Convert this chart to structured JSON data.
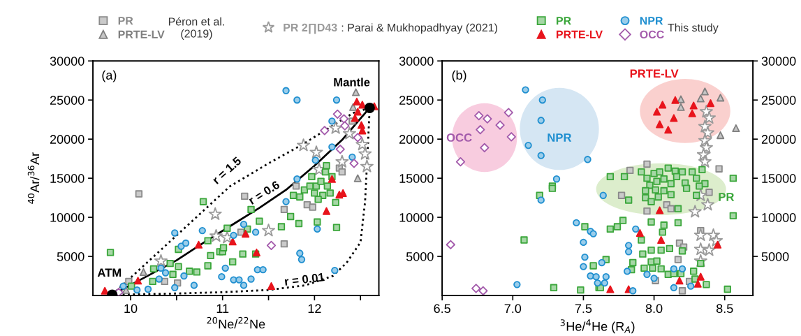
{
  "chart_data": [
    {
      "type": "scatter",
      "xlabel": "$^{20}$Ne/$^{22}$Ne",
      "ylabel": "$^{40}$Ar/$^{36}$Ar",
      "xlim": [
        9.59,
        12.7
      ],
      "xticks": [
        10,
        {
          "value": 10.5,
          "label": null
        },
        11,
        {
          "value": 11.5,
          "label": null
        },
        12,
        {
          "value": 12.5,
          "label": null
        }
      ],
      "ylim": [
        0,
        30000
      ],
      "yticks": [
        5000,
        10000,
        15000,
        20000,
        25000,
        30000
      ],
      "legend": "top",
      "series": [
        {
          "name": "PR",
          "color": "#8a8a8a",
          "marker": "square",
          "x": [
            10.09,
            9.98,
            10.37,
            10.51,
            11.24,
            11.8,
            11.67,
            11.2,
            11.67,
            11.92,
            11.98,
            12.27,
            12.3,
            12.41
          ],
          "values": [
            13000,
            1800,
            1800,
            1600,
            12700,
            14000,
            11000,
            8100,
            6600,
            11600,
            11300,
            16300,
            15800,
            22300
          ]
        },
        {
          "name": "PRTE-LV",
          "color": "#808080",
          "marker": "triangle",
          "x": [
            12.45,
            12.47,
            10.14,
            9.95,
            12.42
          ],
          "values": [
            26000,
            15000,
            3000,
            700,
            24100
          ]
        },
        {
          "name": "PR 2∏D43",
          "color": "#9a9a9a",
          "marker": "star",
          "x": [
            10.92,
            10.93,
            10.33,
            11.05,
            11.5,
            11.88,
            12.02,
            12.05,
            12.3,
            12.23,
            12.52,
            12.55,
            12.57,
            12.38
          ],
          "values": [
            10400,
            7600,
            4400,
            7400,
            8300,
            19200,
            18300,
            16100,
            17100,
            21400,
            19300,
            18100,
            16500,
            20700
          ]
        },
        {
          "name": "PR",
          "color": "#3aa63a",
          "marker": "square",
          "x": [
            9.78,
            10.79,
            10.52,
            10.52,
            10.43,
            10.25,
            10.24,
            10.46,
            10.64,
            10.72,
            10.84,
            10.87,
            10.97,
            11.0,
            11.05,
            10.84,
            10.01,
            11.31,
            11.4,
            11.27,
            11.64,
            11.74,
            11.83,
            11.77,
            11.84,
            11.89,
            12.03,
            12.24,
            12.23,
            11.22,
            11.11,
            11.01,
            11.36,
            11.97,
            12.02,
            12.07,
            12.12,
            12.14,
            12.17,
            12.09,
            12.19,
            12.0,
            12.04,
            12.13,
            11.95
          ],
          "values": [
            5500,
            12000,
            5900,
            3700,
            4100,
            3400,
            1800,
            2700,
            3100,
            3000,
            3800,
            5100,
            5600,
            5600,
            8600,
            7000,
            1200,
            11000,
            9500,
            8500,
            8800,
            10100,
            9200,
            12800,
            12600,
            13500,
            9400,
            8700,
            11900,
            5300,
            4300,
            6100,
            5300,
            15200,
            14000,
            14600,
            15800,
            14000,
            13100,
            12800,
            15200,
            13100,
            12300,
            16600,
            14000
          ]
        },
        {
          "name": "PRTE-LV",
          "color": "#e8141c",
          "marker": "triangle",
          "x": [
            9.72,
            10.08,
            10.74,
            11.11,
            11.25,
            11.37,
            11.53,
            12.13,
            12.19,
            12.27,
            12.31,
            12.46,
            12.52,
            12.47,
            12.44,
            12.51,
            12.52,
            12.65
          ],
          "values": [
            600,
            1900,
            6500,
            6900,
            7900,
            5500,
            1200,
            10800,
            14900,
            12900,
            13100,
            24800,
            24400,
            23500,
            22700,
            21800,
            21100,
            24200
          ]
        },
        {
          "name": "NPR",
          "color": "#1f8fd0",
          "marker": "circle",
          "x": [
            10.48,
            10.55,
            10.6,
            10.78,
            10.33,
            10.38,
            10.31,
            10.58,
            10.69,
            10.48,
            10.19,
            10.07,
            9.92,
            11.03,
            10.99,
            11.69,
            11.81,
            12.24,
            12.19,
            12.19,
            12.01,
            11.81,
            11.69,
            12.41,
            11.23,
            11.36,
            11.12,
            11.84,
            11.86,
            12.03,
            12.22,
            11.38,
            11.44,
            11.12,
            11.18,
            11.23,
            11.31
          ],
          "values": [
            8000,
            6300,
            6700,
            8300,
            3500,
            2900,
            2100,
            2500,
            1300,
            1000,
            800,
            700,
            1200,
            3500,
            2400,
            26200,
            25000,
            25000,
            22300,
            19000,
            17300,
            14900,
            12000,
            17700,
            9100,
            8100,
            7700,
            5400,
            4600,
            8500,
            3200,
            3300,
            3300,
            2000,
            2000,
            1300,
            2100
          ]
        },
        {
          "name": "OCC",
          "color": "#a35aab",
          "marker": "diamond",
          "x": [
            9.87,
            11.53,
            12.11,
            12.25,
            12.32,
            12.33,
            12.28,
            12.43,
            12.47
          ],
          "values": [
            400,
            6400,
            21100,
            23200,
            22600,
            21700,
            18700,
            16900,
            20200
          ]
        },
        {
          "type": "line",
          "color": "#000000",
          "line_style": "solid",
          "x": [
            9.8,
            10.2,
            10.5,
            10.8,
            11.1,
            11.4,
            11.7,
            12.0,
            12.3,
            12.6
          ],
          "values": [
            100,
            2600,
            4500,
            6800,
            9000,
            11200,
            13600,
            16600,
            19900,
            24000
          ]
        },
        {
          "color": "#000000",
          "marker": "circle",
          "x": [
            9.8,
            12.6
          ],
          "values": [
            100,
            24000
          ]
        }
      ],
      "annotations": [
        "(a)",
        "ATM",
        "Mantle",
        "r = 1.5",
        "r = 0.6",
        "r = 0.01",
        "Péron et al.\n(2019)",
        ": Parai & Mukhopadhyay (2021)",
        "This study"
      ]
    },
    {
      "type": "scatter",
      "xlabel": "$^{3}$He/$^{4}$He (R$_{A}$)",
      "xlim": [
        6.5,
        8.7
      ],
      "xticks": [
        6.5,
        {
          "value": 7.0,
          "label": "7.0"
        },
        7.5,
        {
          "value": 8.0,
          "label": "8.0"
        },
        8.5
      ],
      "ylim": [
        0,
        30000
      ],
      "yticks": [
        5000,
        10000,
        15000,
        20000,
        25000,
        30000
      ],
      "y2lim": [
        0,
        30000
      ],
      "y2ticks": [
        5000,
        10000,
        15000,
        20000,
        25000,
        30000
      ],
      "series": [
        {
          "color": "#8a8a8a",
          "marker": "square",
          "x": [
            7.95,
            7.83,
            8.46,
            7.77,
            7.95,
            8.09,
            8.12,
            8.39,
            8.33,
            8.18,
            8.21,
            8.17,
            8.01,
            8.25,
            8.2
          ],
          "values": [
            16800,
            16000,
            16200,
            12800,
            10800,
            11600,
            11100,
            13200,
            8300,
            6700,
            6200,
            4600,
            1900,
            1800,
            600
          ]
        },
        {
          "color": "#808080",
          "marker": "triangle",
          "x": [
            8.36,
            8.47,
            8.19,
            8.19,
            8.33,
            8.47,
            8.58
          ],
          "values": [
            26100,
            25300,
            25100,
            24100,
            25200,
            20500,
            21400
          ]
        },
        {
          "color": "#9a9a9a",
          "marker": "star",
          "x": [
            8.37,
            8.39,
            8.36,
            8.38,
            8.36,
            8.37,
            8.35,
            8.36,
            8.33,
            8.38,
            8.29,
            8.33,
            8.42,
            8.44,
            8.33,
            8.39,
            8.33
          ],
          "values": [
            23500,
            22700,
            21600,
            20800,
            19800,
            18900,
            18000,
            17100,
            12800,
            11600,
            10700,
            7700,
            7700,
            7000,
            5900,
            5800,
            4400
          ]
        },
        {
          "color": "#3aa63a",
          "marker": "square",
          "x": [
            7.69,
            7.79,
            7.82,
            7.91,
            7.95,
            8.0,
            8.04,
            8.1,
            8.15,
            8.2,
            8.27,
            8.34,
            7.97,
            8.02,
            8.07,
            8.12,
            8.16,
            8.22,
            8.3,
            8.36,
            7.94,
            8.01,
            8.07,
            8.12,
            8.23,
            8.32,
            7.94,
            7.98,
            8.03,
            8.3,
            8.17,
            8.56,
            8.56,
            7.78,
            7.98,
            8.07,
            8.17,
            8.06,
            7.91,
            7.74,
            7.69,
            7.92,
            7.98,
            8.05,
            8.11,
            8.2,
            7.66,
            7.85,
            7.98,
            8.02,
            7.99,
            7.93,
            8.05,
            7.84,
            8.1,
            8.14,
            8.19,
            8.28,
            8.33,
            8.29,
            8.37,
            8.52,
            7.61,
            7.28,
            7.28,
            7.19,
            7.08,
            7.51,
            7.57,
            7.29,
            7.48,
            7.62
          ],
          "values": [
            15200,
            15200,
            12200,
            15800,
            15000,
            15600,
            15800,
            16300,
            15900,
            15800,
            15800,
            16100,
            14100,
            14600,
            14900,
            14300,
            15200,
            14400,
            15000,
            14300,
            13400,
            13500,
            13400,
            12900,
            13700,
            14000,
            12500,
            12000,
            12600,
            12800,
            11100,
            15000,
            10200,
            9600,
            9400,
            9000,
            9300,
            8100,
            7100,
            8800,
            8500,
            5300,
            5800,
            5800,
            6000,
            5700,
            4600,
            4200,
            4300,
            4400,
            3500,
            3500,
            3400,
            3300,
            2700,
            2800,
            2800,
            3100,
            4100,
            2100,
            1400,
            800,
            1000,
            14000,
            13700,
            12800,
            7100,
            8800,
            3800,
            1000,
            700,
            1000
          ]
        },
        {
          "color": "#e8141c",
          "marker": "triangle",
          "x": [
            8.02,
            8.06,
            8.15,
            8.28,
            8.27,
            8.4,
            8.14,
            8.04,
            8.1,
            7.9,
            8.05,
            8.45,
            8.04,
            8.33,
            8.18,
            8.31,
            7.82,
            7.69
          ],
          "values": [
            23500,
            24400,
            25000,
            24300,
            23300,
            24600,
            22700,
            21900,
            21200,
            8000,
            7100,
            6500,
            10900,
            2400,
            1900,
            1500,
            800,
            800
          ]
        },
        {
          "color": "#1f8fd0",
          "marker": "circle",
          "x": [
            7.09,
            7.21,
            7.2,
            7.11,
            7.2,
            7.53,
            7.31,
            7.2,
            7.45,
            7.55,
            7.57,
            7.5,
            7.51,
            7.5,
            7.55,
            7.59,
            7.6,
            7.03,
            7.64,
            7.87,
            7.82,
            7.82,
            7.63,
            7.66,
            7.65,
            7.81,
            7.95,
            8.0,
            8.14,
            8.2,
            8.26,
            8.14,
            7.85
          ],
          "values": [
            26300,
            25000,
            22400,
            19200,
            17900,
            17400,
            14900,
            12200,
            9300,
            8200,
            7900,
            6800,
            4900,
            3700,
            2500,
            2400,
            1600,
            1400,
            12800,
            8500,
            6400,
            5600,
            4200,
            2400,
            1600,
            3100,
            2700,
            2200,
            3400,
            3400,
            1200,
            1000,
            600
          ]
        },
        {
          "color": "#a35aab",
          "marker": "diamond",
          "x": [
            6.76,
            6.82,
            6.97,
            6.91,
            6.77,
            6.99,
            6.8,
            6.63,
            6.56,
            6.74,
            6.79
          ],
          "values": [
            23000,
            22600,
            23400,
            21800,
            21200,
            20300,
            18900,
            17100,
            6500,
            900,
            600
          ]
        }
      ],
      "annotations": [
        "(b)",
        "OCC",
        "NPR",
        "PRTE-LV",
        "PR"
      ]
    }
  ]
}
